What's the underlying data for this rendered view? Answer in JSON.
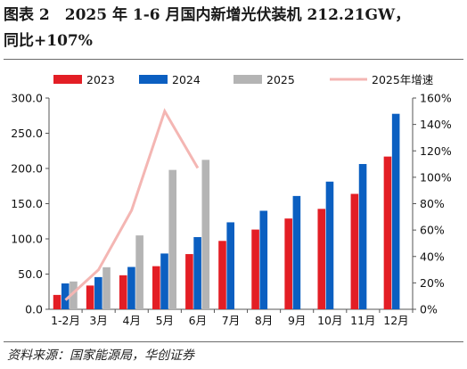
{
  "title": {
    "line1": "图表 2　2025 年 1-6 月国内新增光伏装机 212.21GW，",
    "line2": "同比+107%"
  },
  "source": "资料来源：国家能源局，华创证券",
  "colors": {
    "s2023": "#e31e25",
    "s2024": "#0b5fc1",
    "s2025": "#b4b4b4",
    "growth": "#f4b6b3"
  },
  "chart_data": {
    "type": "bar",
    "categories": [
      "1-2月",
      "3月",
      "4月",
      "5月",
      "6月",
      "7月",
      "8月",
      "9月",
      "10月",
      "11月",
      "12月"
    ],
    "series": [
      {
        "name": "2023",
        "axis": "left",
        "values": [
          20.4,
          33.7,
          48.3,
          61.2,
          78.4,
          97.1,
          113.2,
          128.9,
          142.6,
          163.9,
          216.9
        ]
      },
      {
        "name": "2024",
        "axis": "left",
        "values": [
          36.7,
          45.7,
          60.1,
          79.2,
          102.5,
          123.5,
          139.9,
          160.9,
          181.3,
          206.3,
          277.6
        ]
      },
      {
        "name": "2025",
        "axis": "left",
        "values": [
          39.5,
          59.7,
          104.9,
          197.9,
          212.2,
          null,
          null,
          null,
          null,
          null,
          null
        ]
      },
      {
        "name": "2025年增速",
        "type": "line",
        "axis": "right",
        "values": [
          7,
          30,
          75,
          150,
          107,
          null,
          null,
          null,
          null,
          null,
          null
        ]
      }
    ],
    "y_left": {
      "ylim": [
        0,
        300
      ],
      "ticks": [
        "0.0",
        "50.0",
        "100.0",
        "150.0",
        "200.0",
        "250.0",
        "300.0"
      ]
    },
    "y_right": {
      "ylim": [
        0,
        160
      ],
      "ticks": [
        "0%",
        "20%",
        "40%",
        "60%",
        "80%",
        "100%",
        "120%",
        "140%",
        "160%"
      ]
    },
    "legend_position": "top",
    "grid": false
  }
}
